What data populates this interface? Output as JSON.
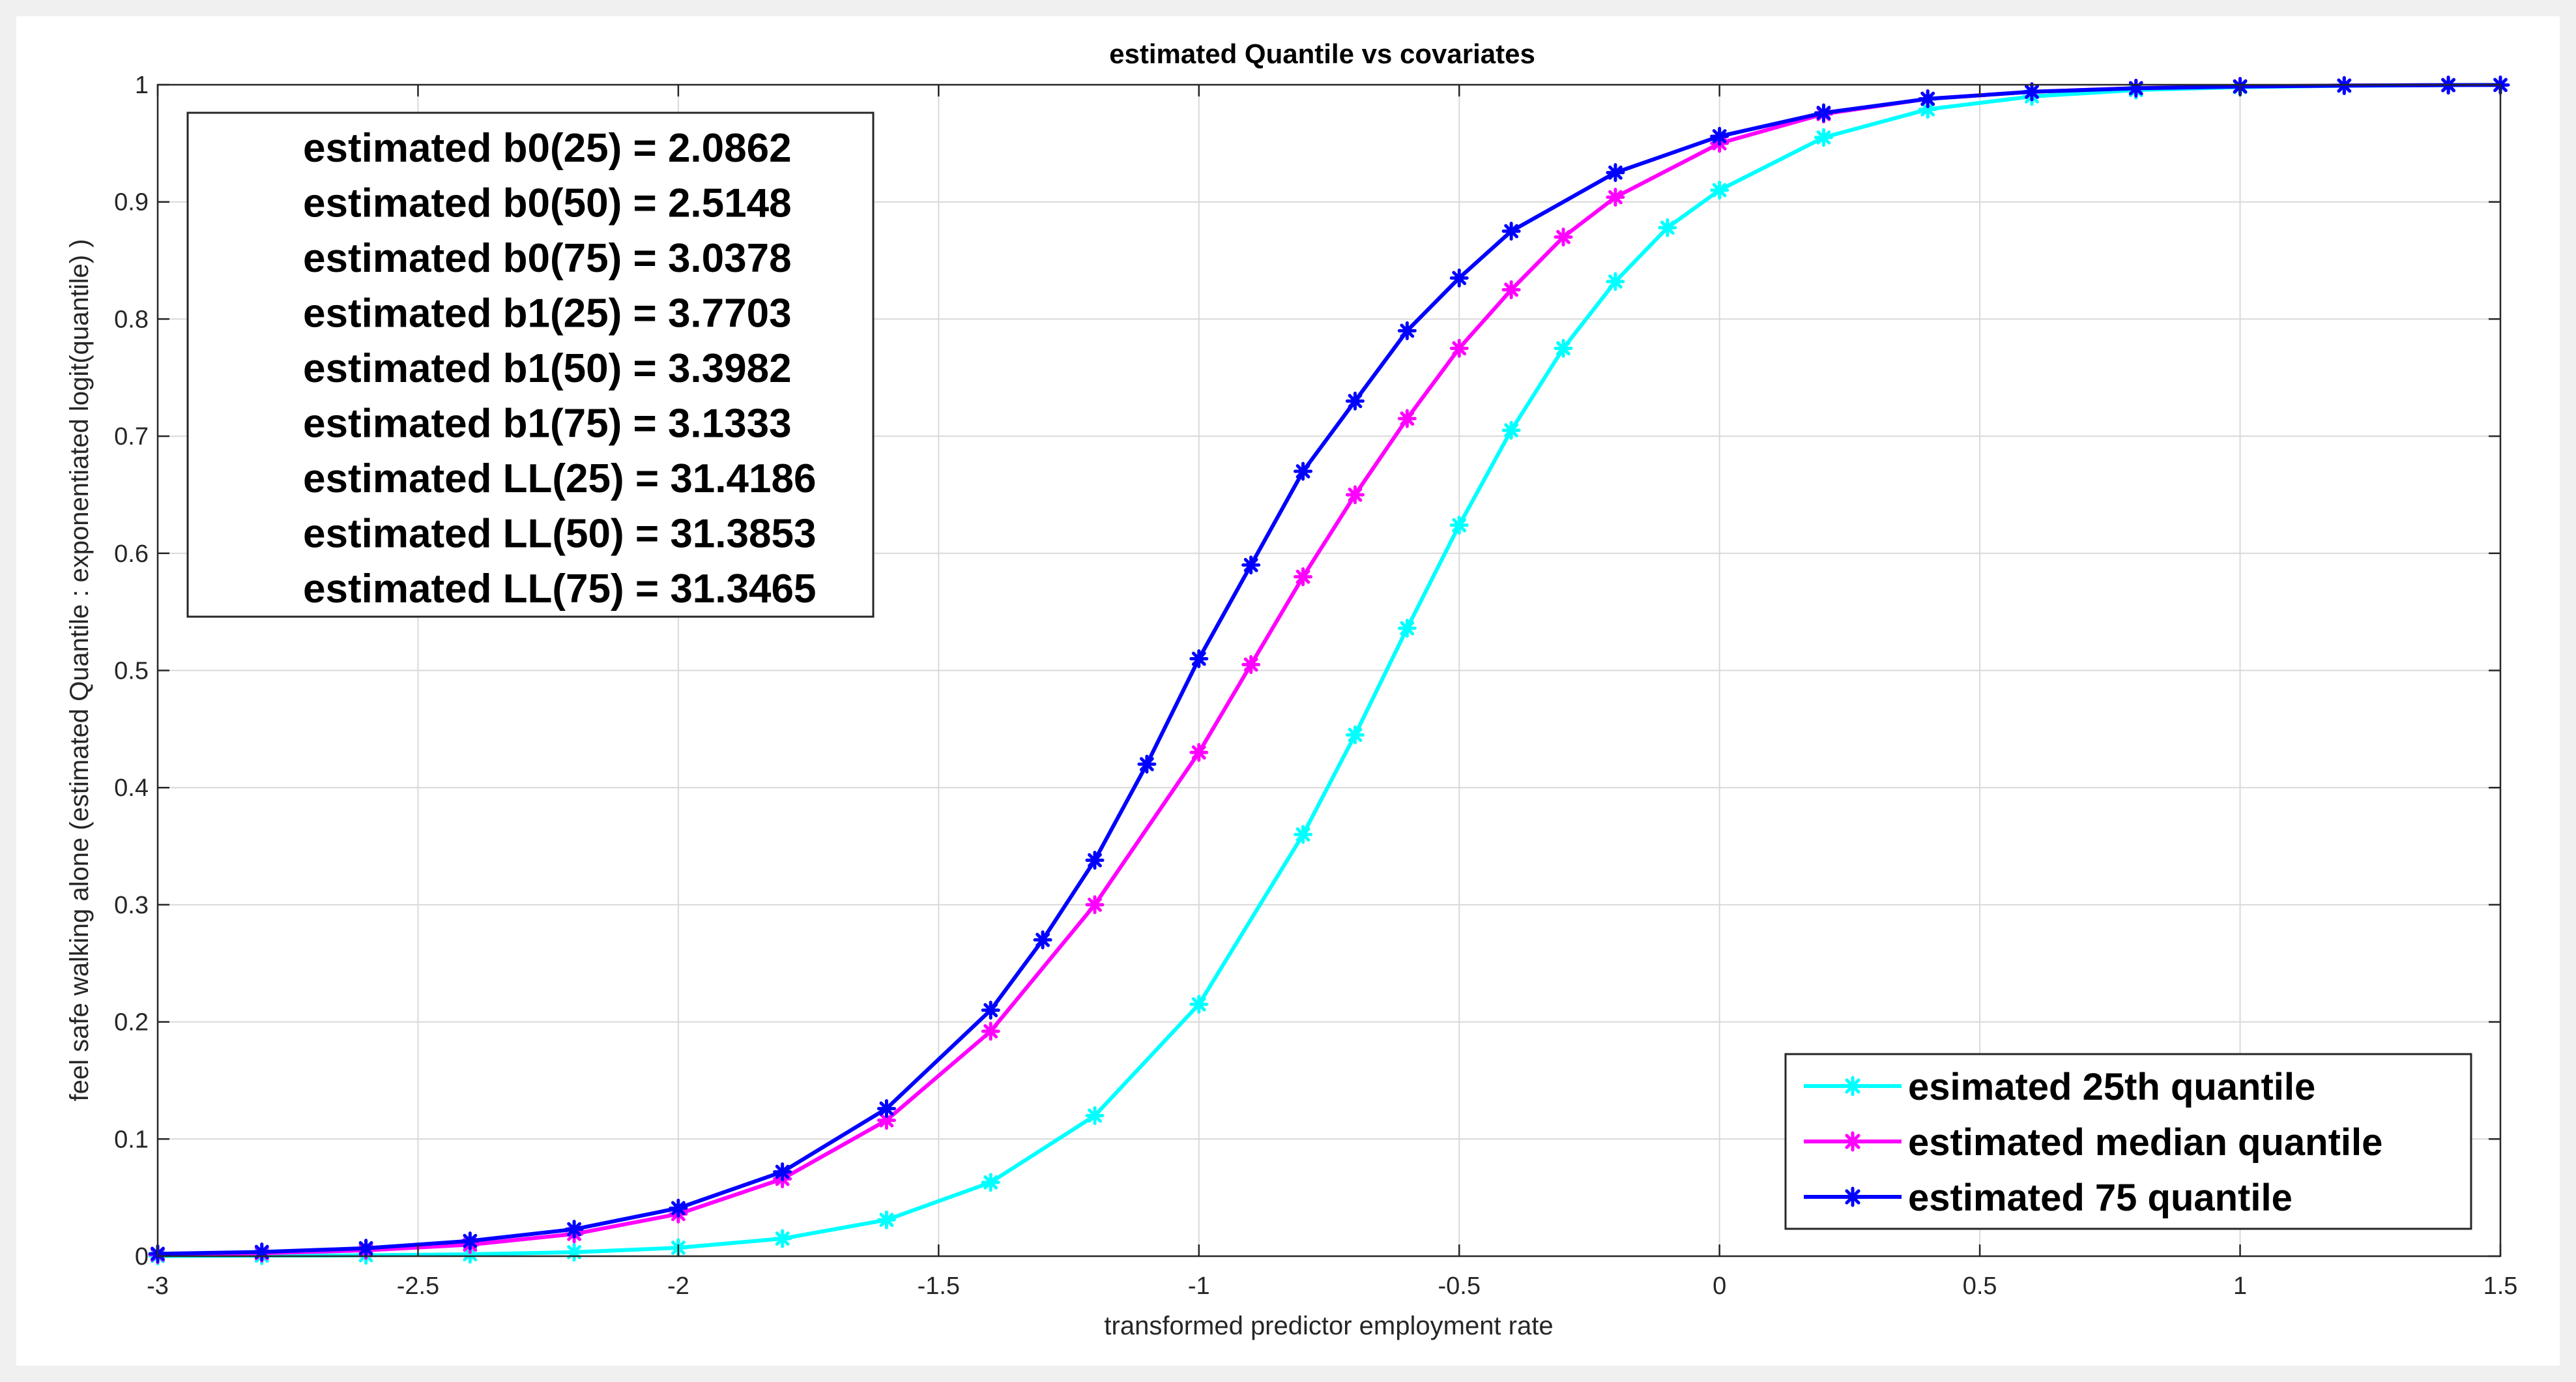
{
  "chart_data": {
    "type": "line",
    "title": "estimated Quantile vs covariates",
    "xlabel": "transformed predictor employment rate",
    "ylabel": "feel safe walking alone (estimated Quantile : exponentiated logit(quantile) )",
    "xlim": [
      -3,
      1.5
    ],
    "ylim": [
      0,
      1
    ],
    "xticks": [
      -3,
      -2.5,
      -2,
      -1.5,
      -1,
      -0.5,
      0,
      0.5,
      1,
      1.5
    ],
    "xtick_labels": [
      "-3",
      "-2.5",
      "-2",
      "-1.5",
      "-1",
      "-0.5",
      "0",
      "0.5",
      "1",
      "1.5"
    ],
    "yticks": [
      0,
      0.1,
      0.2,
      0.3,
      0.4,
      0.5,
      0.6,
      0.7,
      0.8,
      0.9,
      1
    ],
    "ytick_labels": [
      "0",
      "0.1",
      "0.2",
      "0.3",
      "0.4",
      "0.5",
      "0.6",
      "0.7",
      "0.8",
      "0.9",
      "1"
    ],
    "grid": true,
    "legend_position": "bottom-right",
    "annotation_position": "top-left",
    "annotation_lines": [
      "estimated b0(25) = 2.0862",
      "estimated b0(50) = 2.5148",
      "estimated b0(75) = 3.0378",
      "estimated b1(25) = 3.7703",
      "estimated b1(50) = 3.3982",
      "estimated b1(75) = 3.1333",
      "estimated LL(25) = 31.4186",
      "estimated LL(50) = 31.3853",
      "estimated LL(75) = 31.3465"
    ],
    "series": [
      {
        "name": "esimated 25th quantile",
        "color": "#00ffff",
        "marker": "asterisk",
        "x": [
          -3.0,
          -2.8,
          -2.6,
          -2.4,
          -2.2,
          -2.0,
          -1.8,
          -1.6,
          -1.4,
          -1.2,
          -1.0,
          -0.8,
          -0.7,
          -0.6,
          -0.5,
          -0.4,
          -0.3,
          -0.2,
          -0.1,
          0.0,
          0.2,
          0.4,
          0.6,
          0.8,
          1.0,
          1.2,
          1.4
        ],
        "y": [
          0.0002,
          0.0004,
          0.0008,
          0.0016,
          0.0034,
          0.0072,
          0.015,
          0.031,
          0.063,
          0.12,
          0.215,
          0.36,
          0.445,
          0.536,
          0.624,
          0.705,
          0.775,
          0.832,
          0.878,
          0.91,
          0.955,
          0.979,
          0.99,
          0.9955,
          0.998,
          0.9991,
          0.9996
        ]
      },
      {
        "name": "estimated median quantile",
        "color": "#ff00ff",
        "marker": "asterisk",
        "x": [
          -3.0,
          -2.8,
          -2.6,
          -2.4,
          -2.2,
          -2.0,
          -1.8,
          -1.6,
          -1.4,
          -1.2,
          -1.0,
          -0.9,
          -0.8,
          -0.7,
          -0.6,
          -0.5,
          -0.4,
          -0.3,
          -0.2,
          0.0,
          0.2,
          0.4,
          0.6,
          0.8,
          1.0,
          1.2,
          1.4
        ],
        "y": [
          0.0013,
          0.0025,
          0.005,
          0.0098,
          0.019,
          0.036,
          0.066,
          0.116,
          0.192,
          0.3,
          0.43,
          0.505,
          0.58,
          0.65,
          0.715,
          0.775,
          0.825,
          0.87,
          0.904,
          0.95,
          0.975,
          0.988,
          0.994,
          0.9971,
          0.9986,
          0.9993,
          0.9997
        ]
      },
      {
        "name": "estimated 75 quantile",
        "color": "#0000ff",
        "marker": "asterisk",
        "x": [
          -3.0,
          -2.8,
          -2.6,
          -2.4,
          -2.2,
          -2.0,
          -1.8,
          -1.6,
          -1.4,
          -1.3,
          -1.2,
          -1.1,
          -1.0,
          -0.9,
          -0.8,
          -0.7,
          -0.6,
          -0.5,
          -0.4,
          -0.2,
          0.0,
          0.2,
          0.4,
          0.6,
          0.8,
          1.0,
          1.2,
          1.4,
          1.5
        ],
        "y": [
          0.002,
          0.0036,
          0.0068,
          0.013,
          0.023,
          0.041,
          0.072,
          0.126,
          0.21,
          0.27,
          0.338,
          0.42,
          0.51,
          0.59,
          0.67,
          0.73,
          0.79,
          0.835,
          0.875,
          0.925,
          0.956,
          0.976,
          0.988,
          0.994,
          0.997,
          0.9985,
          0.9993,
          0.9997,
          0.9998
        ]
      }
    ]
  }
}
